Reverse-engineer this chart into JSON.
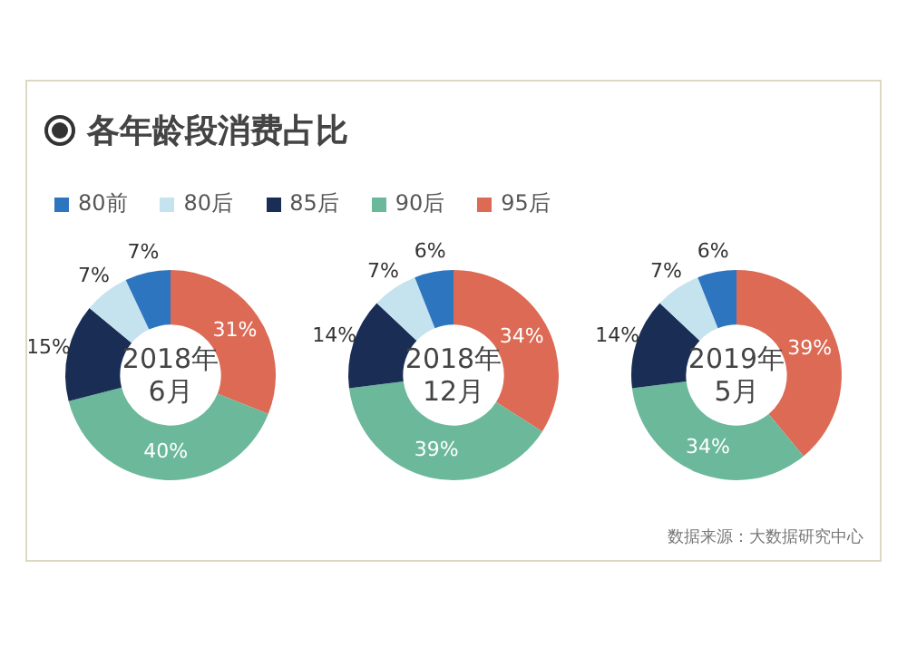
{
  "chart_data": [
    {
      "type": "donut",
      "title": "各年龄段消费占比",
      "subtitle": "2018年 6月",
      "legend": "top",
      "categories": [
        "80前",
        "80后",
        "85后",
        "90后",
        "95后"
      ],
      "colors": [
        "#2e75c0",
        "#c5e3ee",
        "#1a2e55",
        "#6bb89a",
        "#dc6a55"
      ],
      "values": [
        7,
        7,
        15,
        40,
        31
      ],
      "value_labels": [
        "7%",
        "7%",
        "15%",
        "40%",
        "31%"
      ]
    },
    {
      "type": "donut",
      "subtitle": "2018年 12月",
      "categories": [
        null,
        null,
        null,
        null,
        null
      ],
      "colors": [
        "#2e75c0",
        "#c5e3ee",
        "#1a2e55",
        "#6bb89a",
        "#dc6a55"
      ],
      "values": [
        6,
        7,
        14,
        39,
        34
      ],
      "value_labels": [
        "6%",
        "7%",
        "14%",
        "39%",
        "34%"
      ]
    },
    {
      "type": "donut",
      "subtitle": "2019年 5月",
      "categories": [
        null,
        null,
        null,
        null,
        null
      ],
      "colors": [
        "#2e75c0",
        "#c5e3ee",
        "#1a2e55",
        "#6bb89a",
        "#dc6a55"
      ],
      "values": [
        6,
        7,
        14,
        34,
        39
      ],
      "value_labels": [
        "6%",
        "7%",
        "14%",
        "34%",
        "39%"
      ],
      "annotations": [
        "数据来源：大数据研究中心"
      ]
    }
  ]
}
